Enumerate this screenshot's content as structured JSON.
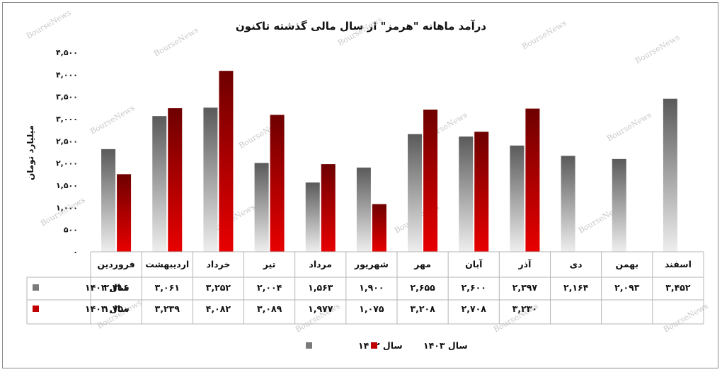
{
  "chart_data": {
    "type": "bar",
    "title": "درآمد ماهانه \"هرمز\" از سال مالی گذشته تاکنون",
    "ylabel": "میلیارد تومان",
    "ylim": [
      0,
      4500
    ],
    "yticks": [
      0,
      500,
      1000,
      1500,
      2000,
      2500,
      3000,
      3500,
      4000,
      4500
    ],
    "ytick_labels": [
      "۰",
      "۵۰۰",
      "۱,۰۰۰",
      "۱,۵۰۰",
      "۲,۰۰۰",
      "۲,۵۰۰",
      "۳,۰۰۰",
      "۳,۵۰۰",
      "۴,۰۰۰",
      "۴,۵۰۰"
    ],
    "categories": [
      "فروردین",
      "اردیبهشت",
      "خرداد",
      "تیر",
      "مرداد",
      "شهریور",
      "مهر",
      "آبان",
      "آذر",
      "دی",
      "بهمن",
      "اسفند"
    ],
    "series": [
      {
        "name": "سال ۱۴۰۲",
        "color": "#7a7a7a",
        "values": [
          2316,
          3061,
          3252,
          2004,
          1563,
          1900,
          2655,
          2600,
          2397,
          2164,
          2093,
          3452
        ],
        "labels": [
          "۲,۳۱۶",
          "۳,۰۶۱",
          "۳,۲۵۲",
          "۲,۰۰۴",
          "۱,۵۶۳",
          "۱,۹۰۰",
          "۲,۶۵۵",
          "۲,۶۰۰",
          "۲,۳۹۷",
          "۲,۱۶۴",
          "۲,۰۹۳",
          "۳,۴۵۲"
        ]
      },
      {
        "name": "سال ۱۴۰۳",
        "color": "#c00000",
        "values": [
          1750,
          3239,
          4082,
          3089,
          1977,
          1075,
          3208,
          2708,
          3230,
          null,
          null,
          null
        ],
        "labels": [
          "۱,۷۵۰",
          "۳,۲۳۹",
          "۴,۰۸۲",
          "۳,۰۸۹",
          "۱,۹۷۷",
          "۱,۰۷۵",
          "۳,۲۰۸",
          "۲,۷۰۸",
          "۳,۲۳۰",
          "",
          "",
          ""
        ]
      }
    ],
    "legend": "bottom",
    "grid": false,
    "watermark": "BourseNews"
  }
}
